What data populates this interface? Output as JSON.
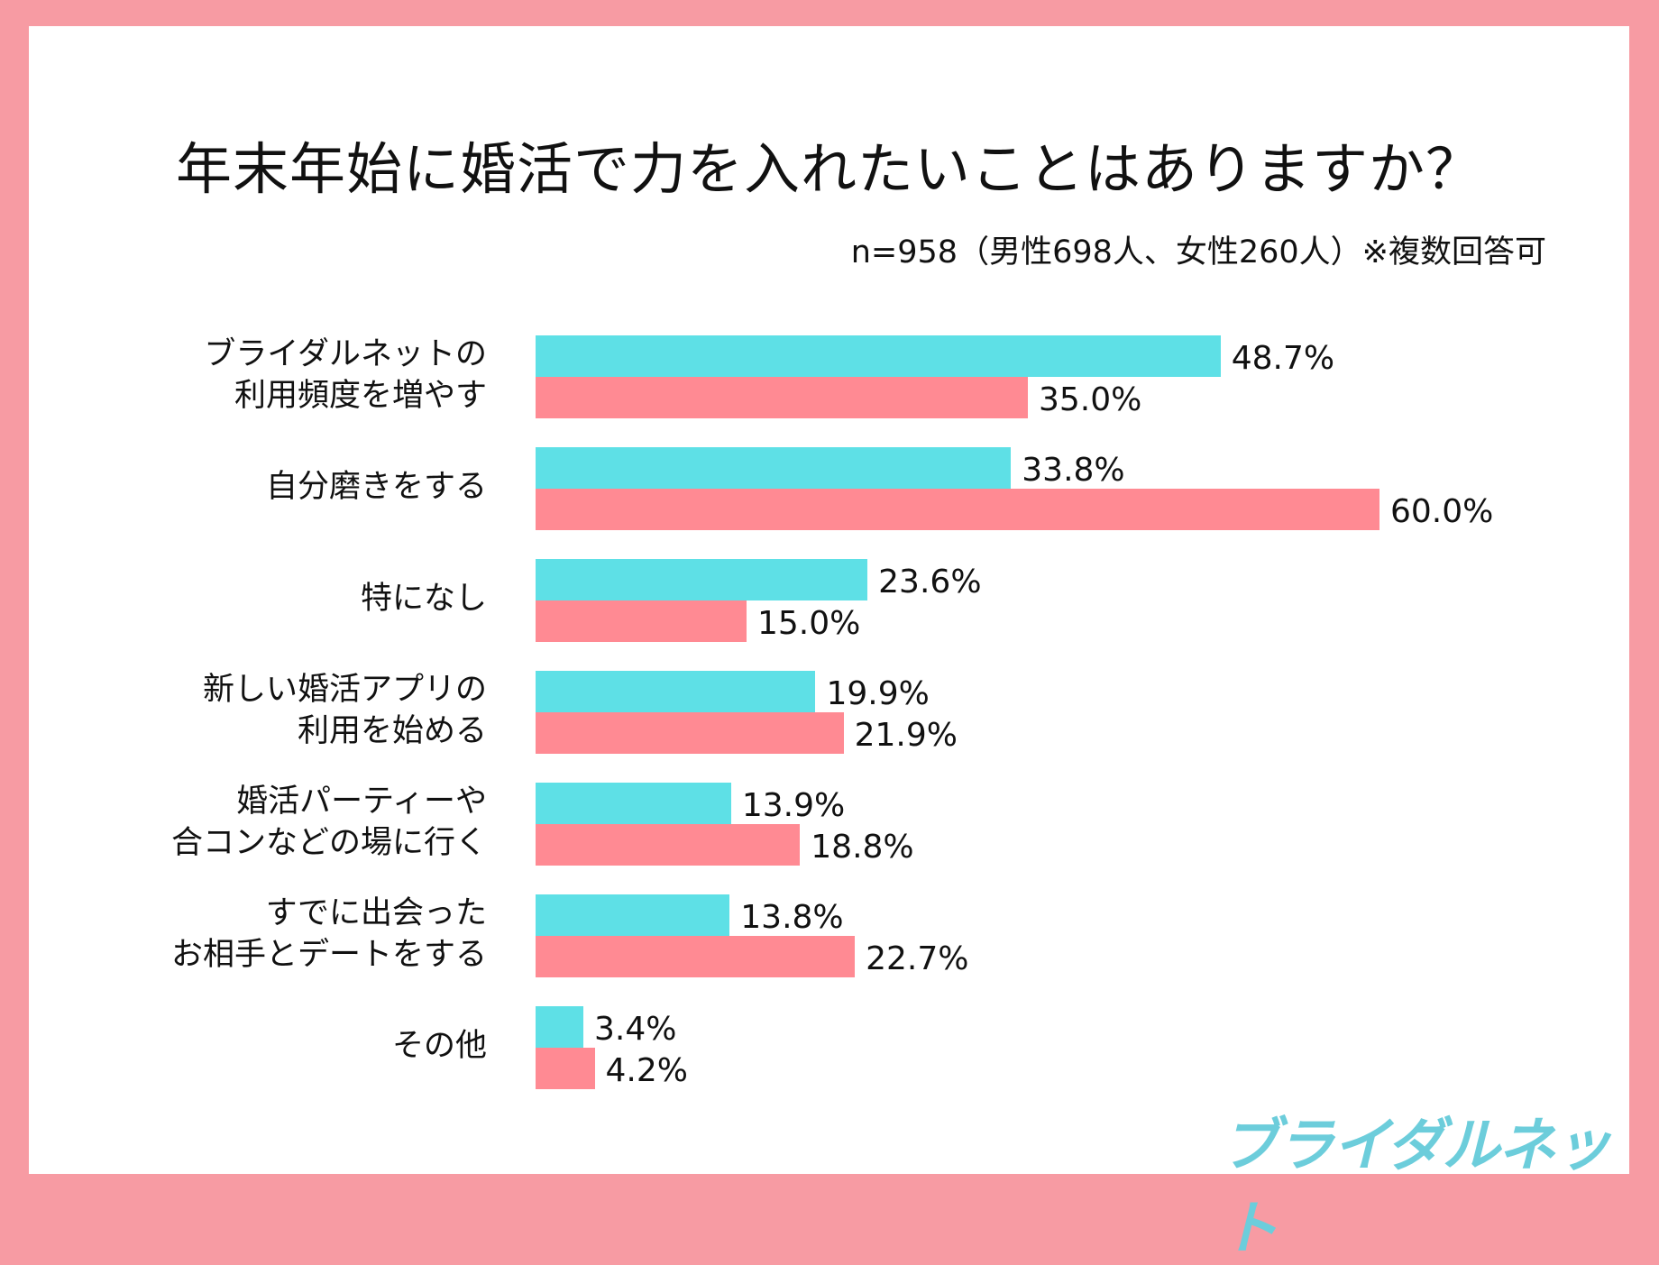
{
  "chart_data": {
    "type": "bar",
    "orientation": "horizontal",
    "title": "年末年始に婚活で力を入れたいことはありますか？",
    "subtitle": "n=958（男性698人、女性260人）※複数回答可",
    "categories": [
      "ブライダルネットの\n利用頻度を増やす",
      "自分磨きをする",
      "特になし",
      "新しい婚活アプリの\n利用を始める",
      "婚活パーティーや\n合コンなどの場に行く",
      "すでに出会った\nお相手とデートをする",
      "その他"
    ],
    "series": [
      {
        "color": "#5ee0e6",
        "values": [
          48.7,
          33.8,
          23.6,
          19.9,
          13.9,
          13.8,
          3.4
        ],
        "labels": [
          "48.7%",
          "33.8%",
          "23.6%",
          "19.9%",
          "13.9%",
          "13.8%",
          "3.4%"
        ]
      },
      {
        "color": "#ff8a93",
        "values": [
          35.0,
          60.0,
          15.0,
          21.9,
          18.8,
          22.7,
          4.2
        ],
        "labels": [
          "35.0%",
          "60.0%",
          "15.0%",
          "21.9%",
          "18.8%",
          "22.7%",
          "4.2%"
        ]
      }
    ],
    "unit": "%",
    "grid": false,
    "axes_visible": false,
    "xlim": [
      0,
      60
    ]
  },
  "colors": {
    "frame": "#f79ba3",
    "logo": "#6ccddb"
  },
  "logo": {
    "text": "ブライダルネット"
  }
}
